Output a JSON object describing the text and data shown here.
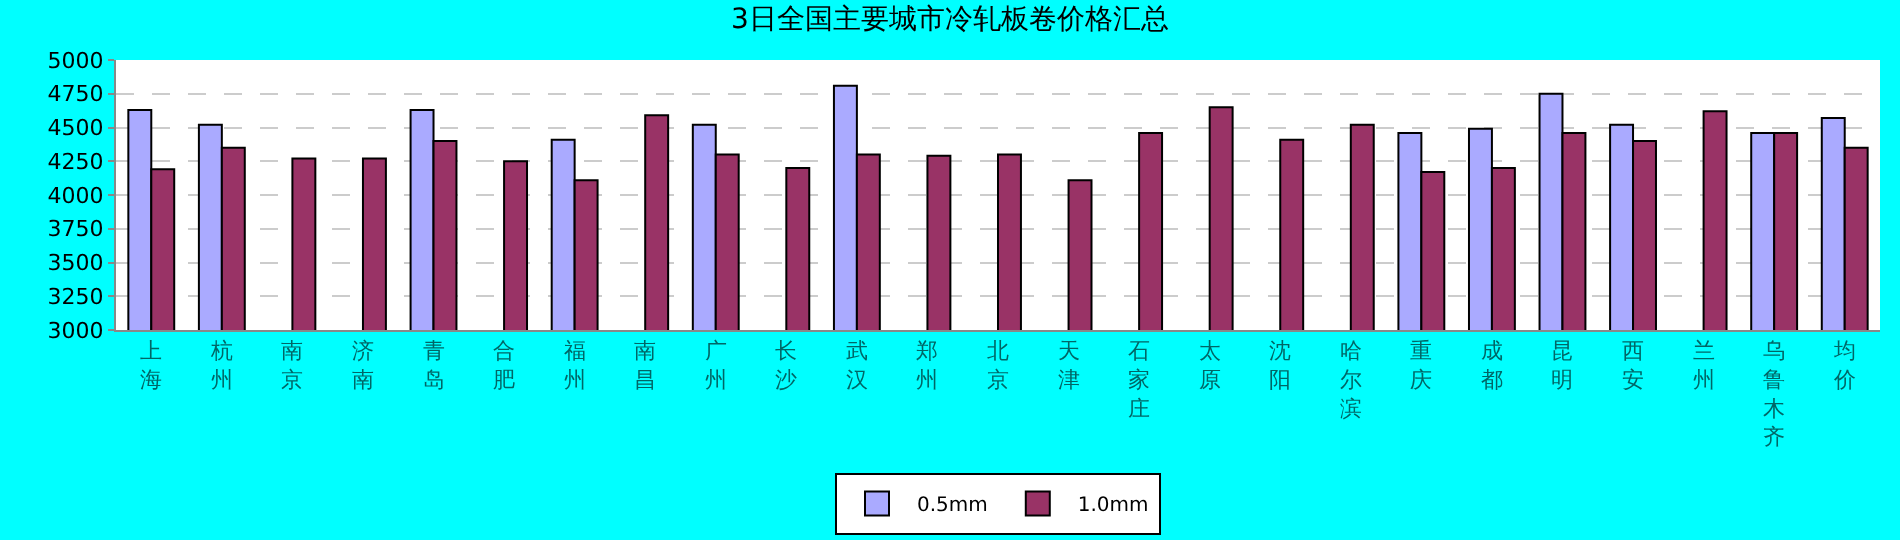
{
  "chart_data": {
    "type": "bar",
    "title": "3日全国主要城市冷轧板卷价格汇总",
    "categories": [
      "上海",
      "杭州",
      "南京",
      "济南",
      "青岛",
      "合肥",
      "福州",
      "南昌",
      "广州",
      "长沙",
      "武汉",
      "郑州",
      "北京",
      "天津",
      "石家庄",
      "太原",
      "沈阳",
      "哈尔滨",
      "重庆",
      "成都",
      "昆明",
      "西安",
      "兰州",
      "乌鲁木齐",
      "均价"
    ],
    "series": [
      {
        "name": "0.5mm",
        "color": "#aaaaff",
        "values": [
          4630,
          4520,
          null,
          null,
          4630,
          null,
          4410,
          null,
          4520,
          null,
          4810,
          null,
          null,
          null,
          null,
          null,
          null,
          null,
          4460,
          4490,
          4750,
          4520,
          null,
          4460,
          4570
        ]
      },
      {
        "name": "1.0mm",
        "color": "#993366",
        "values": [
          4190,
          4350,
          4270,
          4270,
          4400,
          4250,
          4110,
          4590,
          4300,
          4200,
          4300,
          4290,
          4300,
          4110,
          4460,
          4650,
          4410,
          4520,
          4170,
          4200,
          4460,
          4400,
          4620,
          4460,
          4350
        ]
      }
    ],
    "ylim": [
      3000,
      5000
    ],
    "yticks": [
      3000,
      3250,
      3500,
      3750,
      4000,
      4250,
      4500,
      4750,
      5000
    ],
    "grid": "y",
    "legend": "bottom"
  }
}
